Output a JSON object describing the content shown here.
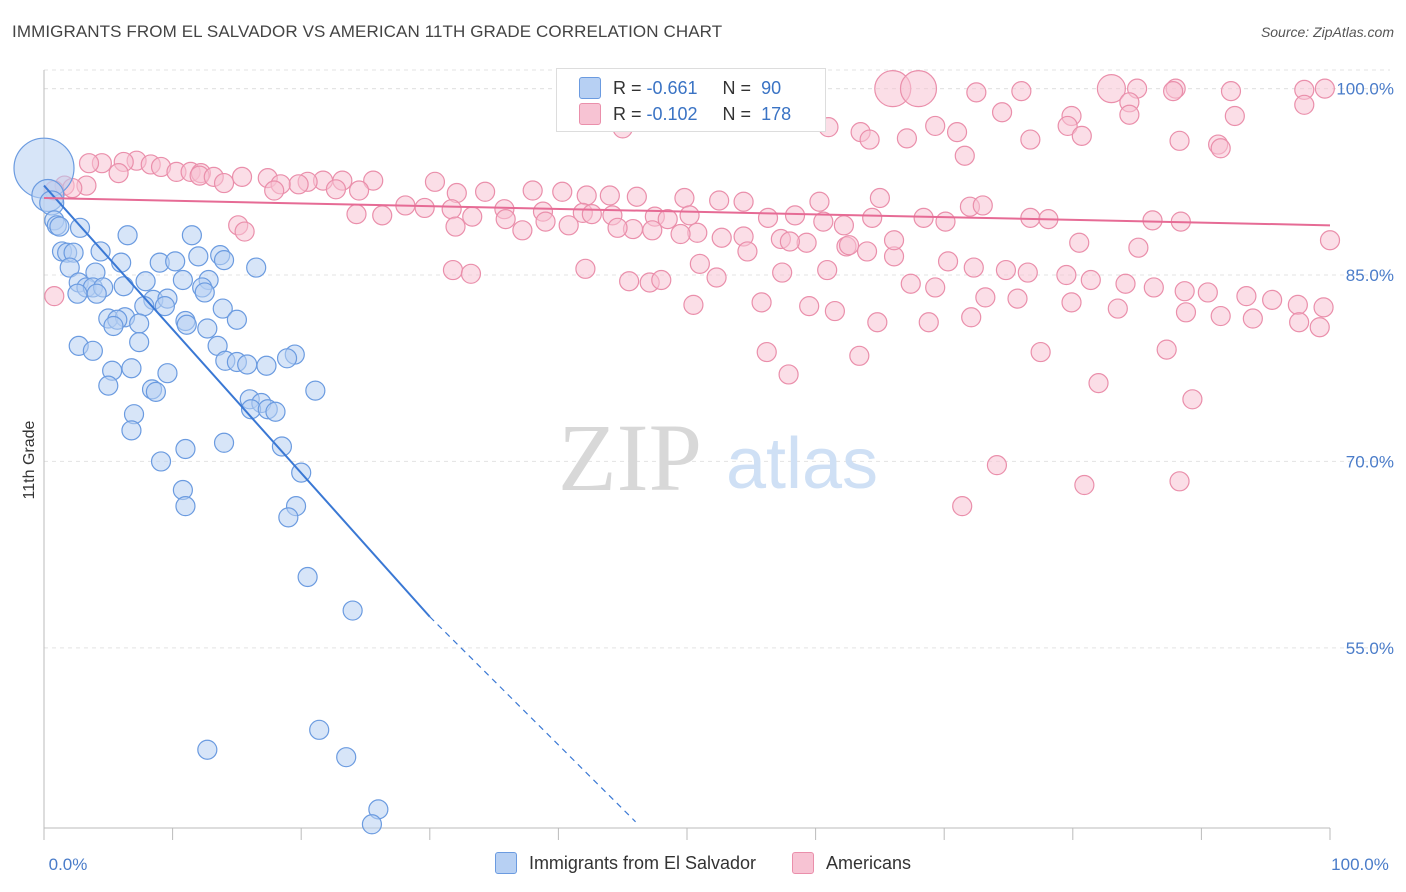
{
  "title": "IMMIGRANTS FROM EL SALVADOR VS AMERICAN 11TH GRADE CORRELATION CHART",
  "source": "Source: ZipAtlas.com",
  "watermark": {
    "zip": "ZIP",
    "atlas": "atlas"
  },
  "legend": {
    "r_label": "R =",
    "n_label": "N =",
    "series1": {
      "r": "-0.661",
      "n": "90"
    },
    "series2": {
      "r": "-0.102",
      "n": "178"
    }
  },
  "colors": {
    "blue_fill": "#b7d0f3",
    "blue_stroke": "#6b9be0",
    "blue_line": "#3a78d4",
    "pink_fill": "#f7c3d3",
    "pink_stroke": "#ea8fab",
    "pink_line": "#e66b95",
    "tick_text": "#4a7cc9",
    "grid": "#e3e3e3"
  },
  "chart_data": {
    "type": "scatter",
    "xlabel": "",
    "ylabel": "11th Grade",
    "xlim": [
      0,
      100
    ],
    "ylim": [
      40.5,
      101.5
    ],
    "x_tick_labels": [
      "0.0%",
      "100.0%"
    ],
    "y_ticks": [
      55.0,
      70.0,
      85.0,
      100.0
    ],
    "y_tick_labels": [
      "55.0%",
      "70.0%",
      "85.0%",
      "100.0%"
    ],
    "grid": true,
    "legend_position": "bottom",
    "series": [
      {
        "name": "Immigrants from El Salvador",
        "trend": {
          "x0": 0,
          "y0": 92.2,
          "x1": 30,
          "y1": 57.5,
          "dash_to_x": 46,
          "dash_to_y": 41
        },
        "points": [
          [
            0.0,
            93.6
          ],
          [
            0.3,
            91.4
          ],
          [
            0.6,
            90.8
          ],
          [
            0.8,
            89.4
          ],
          [
            1.0,
            89.0
          ],
          [
            1.2,
            88.9
          ],
          [
            2.8,
            88.8
          ],
          [
            6.5,
            88.2
          ],
          [
            11.5,
            88.2
          ],
          [
            1.4,
            86.9
          ],
          [
            1.8,
            86.8
          ],
          [
            2.3,
            86.8
          ],
          [
            4.4,
            86.9
          ],
          [
            12.0,
            86.5
          ],
          [
            13.7,
            86.6
          ],
          [
            14.0,
            86.2
          ],
          [
            6.0,
            86.0
          ],
          [
            9.0,
            86.0
          ],
          [
            10.2,
            86.1
          ],
          [
            16.5,
            85.6
          ],
          [
            2.0,
            85.6
          ],
          [
            4.0,
            85.2
          ],
          [
            7.9,
            84.5
          ],
          [
            10.8,
            84.6
          ],
          [
            12.8,
            84.6
          ],
          [
            2.7,
            84.4
          ],
          [
            3.3,
            84.0
          ],
          [
            3.8,
            84.0
          ],
          [
            4.6,
            84.0
          ],
          [
            6.2,
            84.1
          ],
          [
            12.3,
            84.0
          ],
          [
            12.5,
            83.6
          ],
          [
            2.6,
            83.5
          ],
          [
            4.1,
            83.5
          ],
          [
            8.5,
            83.0
          ],
          [
            9.6,
            83.1
          ],
          [
            7.8,
            82.5
          ],
          [
            9.4,
            82.5
          ],
          [
            13.9,
            82.3
          ],
          [
            5.0,
            81.5
          ],
          [
            6.3,
            81.6
          ],
          [
            5.7,
            81.4
          ],
          [
            7.4,
            81.1
          ],
          [
            11.0,
            81.3
          ],
          [
            15.0,
            81.4
          ],
          [
            11.1,
            81.0
          ],
          [
            12.7,
            80.7
          ],
          [
            5.4,
            80.9
          ],
          [
            2.7,
            79.3
          ],
          [
            3.8,
            78.9
          ],
          [
            13.5,
            79.3
          ],
          [
            7.4,
            79.6
          ],
          [
            19.5,
            78.6
          ],
          [
            18.9,
            78.3
          ],
          [
            14.1,
            78.1
          ],
          [
            15.0,
            78.0
          ],
          [
            15.8,
            77.8
          ],
          [
            17.3,
            77.7
          ],
          [
            6.8,
            77.5
          ],
          [
            5.3,
            77.3
          ],
          [
            9.6,
            77.1
          ],
          [
            5.0,
            76.1
          ],
          [
            8.4,
            75.8
          ],
          [
            8.7,
            75.6
          ],
          [
            21.1,
            75.7
          ],
          [
            16.0,
            75.0
          ],
          [
            16.9,
            74.7
          ],
          [
            16.1,
            74.2
          ],
          [
            17.4,
            74.2
          ],
          [
            18.0,
            74.0
          ],
          [
            7.0,
            73.8
          ],
          [
            6.8,
            72.5
          ],
          [
            14.0,
            71.5
          ],
          [
            18.5,
            71.2
          ],
          [
            11.0,
            71.0
          ],
          [
            9.1,
            70.0
          ],
          [
            20.0,
            69.1
          ],
          [
            10.8,
            67.7
          ],
          [
            11.0,
            66.4
          ],
          [
            19.6,
            66.4
          ],
          [
            19.0,
            65.5
          ],
          [
            20.5,
            60.7
          ],
          [
            24.0,
            58.0
          ],
          [
            21.4,
            48.4
          ],
          [
            12.7,
            46.8
          ],
          [
            23.5,
            46.2
          ],
          [
            26.0,
            42.0
          ],
          [
            25.5,
            40.8
          ]
        ],
        "sizes": {
          "0": 30,
          "1": 16,
          "2": 12
        }
      },
      {
        "name": "Americans",
        "trend": {
          "x0": 0,
          "y0": 91.2,
          "x1": 100,
          "y1": 89.0
        },
        "points": [
          [
            66,
            100
          ],
          [
            68,
            100
          ],
          [
            83,
            100
          ],
          [
            85,
            100
          ],
          [
            88,
            100
          ],
          [
            99.6,
            100
          ],
          [
            98,
            99.9
          ],
          [
            92.3,
            99.8
          ],
          [
            87.8,
            99.8
          ],
          [
            76,
            99.8
          ],
          [
            72.5,
            99.7
          ],
          [
            84.4,
            98.9
          ],
          [
            98,
            98.7
          ],
          [
            74.5,
            98.1
          ],
          [
            92.6,
            97.8
          ],
          [
            84.4,
            97.9
          ],
          [
            79.9,
            97.8
          ],
          [
            79.6,
            97.0
          ],
          [
            69.3,
            97.0
          ],
          [
            45,
            96.8
          ],
          [
            61,
            96.9
          ],
          [
            63.5,
            96.5
          ],
          [
            71,
            96.5
          ],
          [
            80.7,
            96.2
          ],
          [
            67.1,
            96.0
          ],
          [
            64.2,
            95.9
          ],
          [
            88.3,
            95.8
          ],
          [
            76.7,
            95.9
          ],
          [
            91.3,
            95.5
          ],
          [
            91.5,
            95.2
          ],
          [
            71.6,
            94.6
          ],
          [
            7.2,
            94.2
          ],
          [
            6.2,
            94.1
          ],
          [
            4.5,
            94.0
          ],
          [
            3.5,
            94.0
          ],
          [
            8.3,
            93.9
          ],
          [
            9.1,
            93.7
          ],
          [
            10.3,
            93.3
          ],
          [
            11.4,
            93.3
          ],
          [
            12.2,
            93.2
          ],
          [
            5.8,
            93.2
          ],
          [
            12.1,
            93.0
          ],
          [
            13.2,
            92.9
          ],
          [
            15.4,
            92.9
          ],
          [
            17.4,
            92.8
          ],
          [
            23.2,
            92.6
          ],
          [
            21.7,
            92.6
          ],
          [
            20.5,
            92.5
          ],
          [
            25.6,
            92.6
          ],
          [
            30.4,
            92.5
          ],
          [
            14.0,
            92.4
          ],
          [
            19.8,
            92.3
          ],
          [
            18.4,
            92.3
          ],
          [
            1.6,
            92.2
          ],
          [
            3.3,
            92.2
          ],
          [
            2.2,
            92.0
          ],
          [
            0.8,
            91.8
          ],
          [
            17.9,
            91.8
          ],
          [
            22.7,
            91.9
          ],
          [
            24.5,
            91.8
          ],
          [
            32.1,
            91.6
          ],
          [
            34.3,
            91.7
          ],
          [
            38.0,
            91.8
          ],
          [
            40.3,
            91.7
          ],
          [
            42.2,
            91.4
          ],
          [
            44.0,
            91.4
          ],
          [
            46.1,
            91.3
          ],
          [
            49.8,
            91.2
          ],
          [
            52.5,
            91.0
          ],
          [
            54.4,
            90.9
          ],
          [
            60.3,
            90.9
          ],
          [
            65.0,
            91.2
          ],
          [
            72.0,
            90.5
          ],
          [
            73.0,
            90.6
          ],
          [
            28.1,
            90.6
          ],
          [
            29.6,
            90.4
          ],
          [
            31.7,
            90.3
          ],
          [
            35.8,
            90.3
          ],
          [
            38.8,
            90.1
          ],
          [
            41.9,
            90.0
          ],
          [
            42.6,
            89.9
          ],
          [
            44.2,
            89.8
          ],
          [
            47.5,
            89.7
          ],
          [
            48.5,
            89.5
          ],
          [
            50.2,
            89.8
          ],
          [
            56.3,
            89.6
          ],
          [
            58.4,
            89.8
          ],
          [
            60.6,
            89.3
          ],
          [
            62.2,
            89.0
          ],
          [
            64.4,
            89.6
          ],
          [
            68.4,
            89.6
          ],
          [
            70.1,
            89.3
          ],
          [
            76.7,
            89.6
          ],
          [
            78.1,
            89.5
          ],
          [
            86.2,
            89.4
          ],
          [
            88.4,
            89.3
          ],
          [
            24.3,
            89.9
          ],
          [
            26.3,
            89.8
          ],
          [
            33.3,
            89.7
          ],
          [
            35.9,
            89.5
          ],
          [
            39.0,
            89.3
          ],
          [
            40.8,
            89.0
          ],
          [
            45.8,
            88.7
          ],
          [
            50.8,
            88.4
          ],
          [
            54.4,
            88.1
          ],
          [
            57.3,
            87.9
          ],
          [
            59.3,
            87.6
          ],
          [
            62.4,
            87.3
          ],
          [
            64.0,
            86.9
          ],
          [
            66.1,
            86.5
          ],
          [
            70.3,
            86.1
          ],
          [
            72.3,
            85.6
          ],
          [
            74.8,
            85.4
          ],
          [
            76.5,
            85.2
          ],
          [
            79.5,
            85.0
          ],
          [
            81.4,
            84.6
          ],
          [
            84.1,
            84.3
          ],
          [
            86.3,
            84.0
          ],
          [
            88.7,
            83.7
          ],
          [
            90.5,
            83.6
          ],
          [
            93.5,
            83.3
          ],
          [
            95.5,
            83.0
          ],
          [
            97.5,
            82.6
          ],
          [
            99.5,
            82.4
          ],
          [
            100.0,
            87.8
          ],
          [
            85.1,
            87.2
          ],
          [
            80.5,
            87.6
          ],
          [
            62.6,
            87.4
          ],
          [
            58.0,
            87.7
          ],
          [
            52.7,
            88.0
          ],
          [
            49.5,
            88.3
          ],
          [
            47.3,
            88.6
          ],
          [
            44.6,
            88.8
          ],
          [
            37.2,
            88.6
          ],
          [
            32.0,
            88.9
          ],
          [
            15.1,
            89.0
          ],
          [
            15.6,
            88.5
          ],
          [
            31.8,
            85.4
          ],
          [
            42.1,
            85.5
          ],
          [
            45.5,
            84.5
          ],
          [
            47.1,
            84.4
          ],
          [
            52.3,
            84.8
          ],
          [
            57.4,
            85.2
          ],
          [
            60.9,
            85.4
          ],
          [
            67.4,
            84.3
          ],
          [
            69.3,
            84.0
          ],
          [
            73.2,
            83.2
          ],
          [
            75.7,
            83.1
          ],
          [
            79.9,
            82.8
          ],
          [
            83.5,
            82.3
          ],
          [
            88.8,
            82.0
          ],
          [
            91.5,
            81.7
          ],
          [
            94.0,
            81.5
          ],
          [
            97.6,
            81.2
          ],
          [
            99.2,
            80.8
          ],
          [
            33.2,
            85.1
          ],
          [
            59.5,
            82.5
          ],
          [
            61.5,
            82.1
          ],
          [
            55.8,
            82.8
          ],
          [
            56.2,
            78.8
          ],
          [
            64.8,
            81.2
          ],
          [
            68.8,
            81.2
          ],
          [
            72.1,
            81.6
          ],
          [
            77.5,
            78.8
          ],
          [
            87.3,
            79.0
          ],
          [
            57.9,
            77.0
          ],
          [
            89.3,
            75.0
          ],
          [
            82.0,
            76.3
          ],
          [
            74.1,
            69.7
          ],
          [
            80.9,
            68.1
          ],
          [
            88.3,
            68.4
          ],
          [
            71.4,
            66.4
          ],
          [
            0.8,
            83.3
          ],
          [
            63.4,
            78.5
          ],
          [
            66.1,
            87.8
          ],
          [
            54.7,
            86.9
          ],
          [
            51.0,
            85.9
          ],
          [
            48.0,
            84.6
          ],
          [
            50.5,
            82.6
          ]
        ],
        "sizes": {
          "0": 18,
          "1": 18,
          "2": 14
        }
      }
    ]
  },
  "bottom_legend": {
    "series1": "Immigrants from El Salvador",
    "series2": "Americans"
  }
}
